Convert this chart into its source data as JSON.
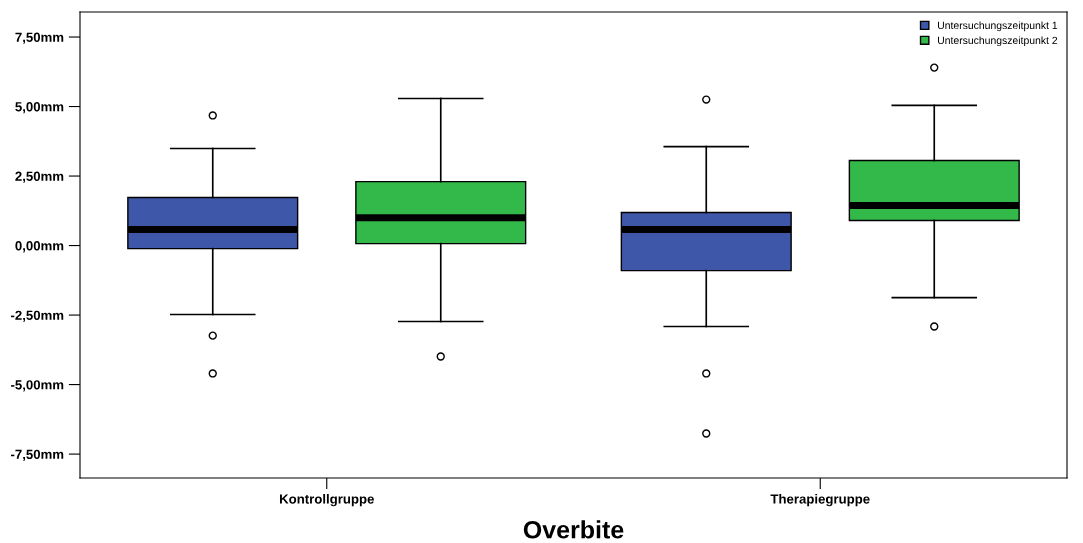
{
  "chart_data": {
    "type": "box",
    "xlabel": "Overbite",
    "categories": [
      "Kontrollgruppe",
      "Therapiegruppe"
    ],
    "ylim": [
      -8.36,
      8.4
    ],
    "yticks": [
      {
        "value": -7.5,
        "label": "-7,50mm"
      },
      {
        "value": -5,
        "label": "-5,00mm"
      },
      {
        "value": -2.5,
        "label": "-2,50mm"
      },
      {
        "value": 0,
        "label": "0,00mm"
      },
      {
        "value": 2.5,
        "label": "2,50mm"
      },
      {
        "value": 5,
        "label": "5,00mm"
      },
      {
        "value": 7.5,
        "label": "7,50mm"
      }
    ],
    "grid": false,
    "legend": "top right",
    "series": [
      {
        "name": "Untersuchungszeitpunkt 1",
        "color": "#3f57a8",
        "boxes": [
          {
            "low": -2.48,
            "q1": -0.11,
            "median": 0.58,
            "q3": 1.73,
            "high": 3.49,
            "outliers": [
              4.68,
              -3.24,
              -4.6
            ]
          },
          {
            "low": -2.91,
            "q1": -0.9,
            "median": 0.58,
            "q3": 1.19,
            "high": 3.56,
            "outliers": [
              5.25,
              -4.6,
              -6.76
            ]
          }
        ]
      },
      {
        "name": "Untersuchungszeitpunkt 2",
        "color": "#33b94a",
        "boxes": [
          {
            "low": -2.73,
            "q1": 0.07,
            "median": 1.0,
            "q3": 2.3,
            "high": 5.29,
            "outliers": [
              -3.99
            ]
          },
          {
            "low": -1.87,
            "q1": 0.9,
            "median": 1.44,
            "q3": 3.06,
            "high": 5.04,
            "outliers": [
              6.4,
              -2.91
            ]
          }
        ]
      }
    ]
  }
}
